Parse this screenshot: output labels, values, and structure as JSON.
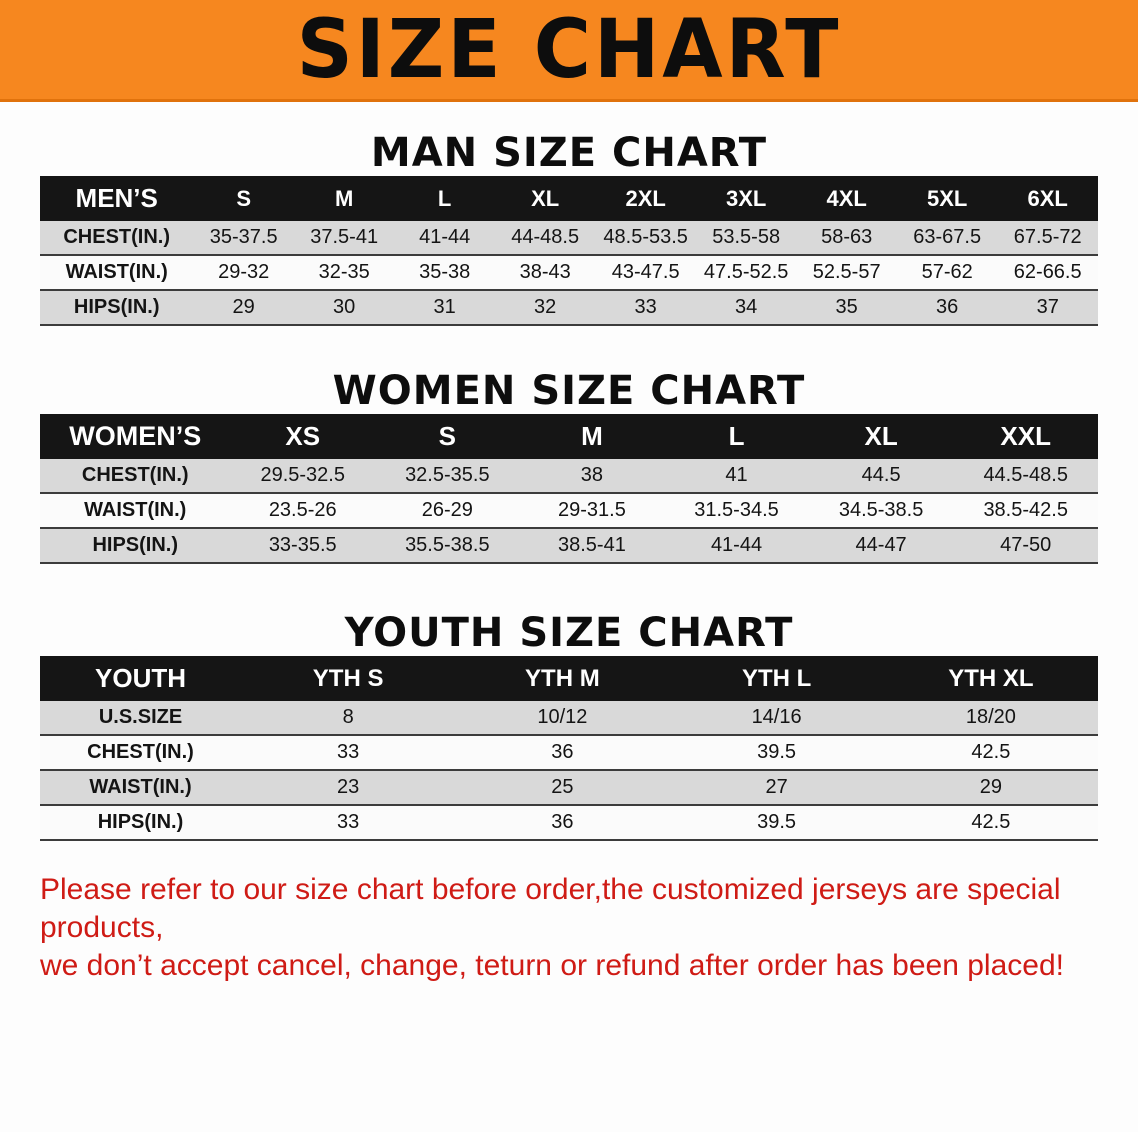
{
  "banner": {
    "title": "SIZE CHART"
  },
  "colors": {
    "banner_orange": "#f6871f",
    "table_header_black": "#151515",
    "row_gray": "#d9d9d9",
    "footer_red": "#cf1b15"
  },
  "sections": {
    "men": {
      "heading": "MAN SIZE CHART",
      "table": {
        "header": [
          "MEN’S",
          "S",
          "M",
          "L",
          "XL",
          "2XL",
          "3XL",
          "4XL",
          "5XL",
          "6XL"
        ],
        "rows": [
          {
            "label": "CHEST(IN.)",
            "values": [
              "35-37.5",
              "37.5-41",
              "41-44",
              "44-48.5",
              "48.5-53.5",
              "53.5-58",
              "58-63",
              "63-67.5",
              "67.5-72"
            ]
          },
          {
            "label": "WAIST(IN.)",
            "values": [
              "29-32",
              "32-35",
              "35-38",
              "38-43",
              "43-47.5",
              "47.5-52.5",
              "52.5-57",
              "57-62",
              "62-66.5"
            ]
          },
          {
            "label": "HIPS(IN.)",
            "values": [
              "29",
              "30",
              "31",
              "32",
              "33",
              "34",
              "35",
              "36",
              "37"
            ]
          }
        ]
      }
    },
    "women": {
      "heading": "WOMEN SIZE CHART",
      "table": {
        "header": [
          "WOMEN’S",
          "XS",
          "S",
          "M",
          "L",
          "XL",
          "XXL"
        ],
        "rows": [
          {
            "label": "CHEST(IN.)",
            "values": [
              "29.5-32.5",
              "32.5-35.5",
              "38",
              "41",
              "44.5",
              "44.5-48.5"
            ]
          },
          {
            "label": "WAIST(IN.)",
            "values": [
              "23.5-26",
              "26-29",
              "29-31.5",
              "31.5-34.5",
              "34.5-38.5",
              "38.5-42.5"
            ]
          },
          {
            "label": "HIPS(IN.)",
            "values": [
              "33-35.5",
              "35.5-38.5",
              "38.5-41",
              "41-44",
              "44-47",
              "47-50"
            ]
          }
        ]
      }
    },
    "youth": {
      "heading": "YOUTH SIZE CHART",
      "table": {
        "header": [
          "YOUTH",
          "YTH S",
          "YTH M",
          "YTH L",
          "YTH XL"
        ],
        "rows": [
          {
            "label": "U.S.SIZE",
            "values": [
              "8",
              "10/12",
              "14/16",
              "18/20"
            ]
          },
          {
            "label": "CHEST(IN.)",
            "values": [
              "33",
              "36",
              "39.5",
              "42.5"
            ]
          },
          {
            "label": "WAIST(IN.)",
            "values": [
              "23",
              "25",
              "27",
              "29"
            ]
          },
          {
            "label": "HIPS(IN.)",
            "values": [
              "33",
              "36",
              "39.5",
              "42.5"
            ]
          }
        ]
      }
    }
  },
  "footer": {
    "line1": "Please refer to our size chart before order,the customized jerseys are special products,",
    "line2": "we don’t accept cancel, change, teturn or refund after order has been placed!"
  }
}
